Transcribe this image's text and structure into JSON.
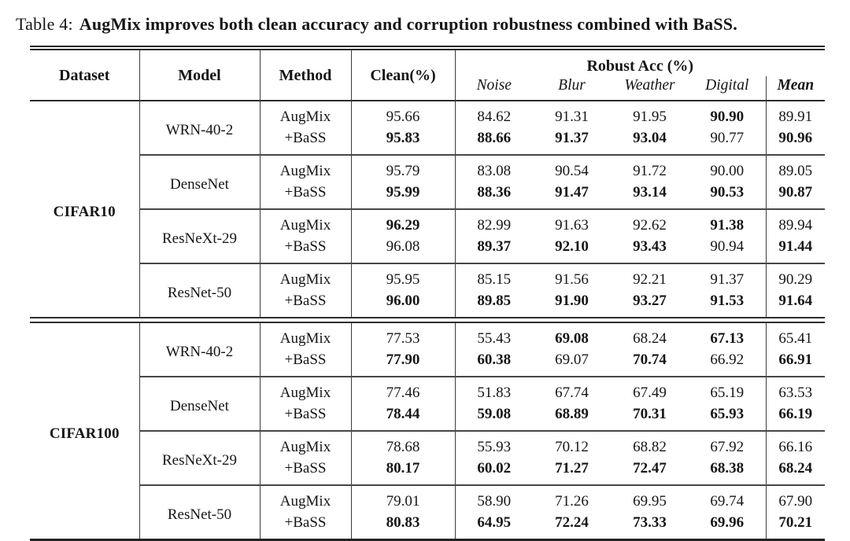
{
  "caption": {
    "label": "Table 4:",
    "title": "AugMix improves both clean accuracy and corruption robustness combined with BaSS."
  },
  "table": {
    "header": {
      "dataset": "Dataset",
      "model": "Model",
      "method": "Method",
      "clean": "Clean(%)",
      "robust_group": "Robust Acc (%)",
      "subcolumns": [
        "Noise",
        "Blur",
        "Weather",
        "Digital",
        "Mean"
      ]
    },
    "value_columns": [
      "clean",
      "noise",
      "blur",
      "weather",
      "digital",
      "mean"
    ],
    "datasets": [
      {
        "name": "CIFAR10",
        "models": [
          {
            "name": "WRN-40-2",
            "rows": [
              {
                "method": "AugMix",
                "values": [
                  "95.66",
                  "84.62",
                  "91.31",
                  "91.95",
                  "90.90",
                  "89.91"
                ],
                "bold": [
                  0,
                  0,
                  0,
                  0,
                  1,
                  0
                ]
              },
              {
                "method": "+BaSS",
                "values": [
                  "95.83",
                  "88.66",
                  "91.37",
                  "93.04",
                  "90.77",
                  "90.96"
                ],
                "bold": [
                  1,
                  1,
                  1,
                  1,
                  0,
                  1
                ]
              }
            ]
          },
          {
            "name": "DenseNet",
            "rows": [
              {
                "method": "AugMix",
                "values": [
                  "95.79",
                  "83.08",
                  "90.54",
                  "91.72",
                  "90.00",
                  "89.05"
                ],
                "bold": [
                  0,
                  0,
                  0,
                  0,
                  0,
                  0
                ]
              },
              {
                "method": "+BaSS",
                "values": [
                  "95.99",
                  "88.36",
                  "91.47",
                  "93.14",
                  "90.53",
                  "90.87"
                ],
                "bold": [
                  1,
                  1,
                  1,
                  1,
                  1,
                  1
                ]
              }
            ]
          },
          {
            "name": "ResNeXt-29",
            "rows": [
              {
                "method": "AugMix",
                "values": [
                  "96.29",
                  "82.99",
                  "91.63",
                  "92.62",
                  "91.38",
                  "89.94"
                ],
                "bold": [
                  1,
                  0,
                  0,
                  0,
                  1,
                  0
                ]
              },
              {
                "method": "+BaSS",
                "values": [
                  "96.08",
                  "89.37",
                  "92.10",
                  "93.43",
                  "90.94",
                  "91.44"
                ],
                "bold": [
                  0,
                  1,
                  1,
                  1,
                  0,
                  1
                ]
              }
            ]
          },
          {
            "name": "ResNet-50",
            "rows": [
              {
                "method": "AugMix",
                "values": [
                  "95.95",
                  "85.15",
                  "91.56",
                  "92.21",
                  "91.37",
                  "90.29"
                ],
                "bold": [
                  0,
                  0,
                  0,
                  0,
                  0,
                  0
                ]
              },
              {
                "method": "+BaSS",
                "values": [
                  "96.00",
                  "89.85",
                  "91.90",
                  "93.27",
                  "91.53",
                  "91.64"
                ],
                "bold": [
                  1,
                  1,
                  1,
                  1,
                  1,
                  1
                ]
              }
            ]
          }
        ]
      },
      {
        "name": "CIFAR100",
        "models": [
          {
            "name": "WRN-40-2",
            "rows": [
              {
                "method": "AugMix",
                "values": [
                  "77.53",
                  "55.43",
                  "69.08",
                  "68.24",
                  "67.13",
                  "65.41"
                ],
                "bold": [
                  0,
                  0,
                  1,
                  0,
                  1,
                  0
                ]
              },
              {
                "method": "+BaSS",
                "values": [
                  "77.90",
                  "60.38",
                  "69.07",
                  "70.74",
                  "66.92",
                  "66.91"
                ],
                "bold": [
                  1,
                  1,
                  0,
                  1,
                  0,
                  1
                ]
              }
            ]
          },
          {
            "name": "DenseNet",
            "rows": [
              {
                "method": "AugMix",
                "values": [
                  "77.46",
                  "51.83",
                  "67.74",
                  "67.49",
                  "65.19",
                  "63.53"
                ],
                "bold": [
                  0,
                  0,
                  0,
                  0,
                  0,
                  0
                ]
              },
              {
                "method": "+BaSS",
                "values": [
                  "78.44",
                  "59.08",
                  "68.89",
                  "70.31",
                  "65.93",
                  "66.19"
                ],
                "bold": [
                  1,
                  1,
                  1,
                  1,
                  1,
                  1
                ]
              }
            ]
          },
          {
            "name": "ResNeXt-29",
            "rows": [
              {
                "method": "AugMix",
                "values": [
                  "78.68",
                  "55.93",
                  "70.12",
                  "68.82",
                  "67.92",
                  "66.16"
                ],
                "bold": [
                  0,
                  0,
                  0,
                  0,
                  0,
                  0
                ]
              },
              {
                "method": "+BaSS",
                "values": [
                  "80.17",
                  "60.02",
                  "71.27",
                  "72.47",
                  "68.38",
                  "68.24"
                ],
                "bold": [
                  1,
                  1,
                  1,
                  1,
                  1,
                  1
                ]
              }
            ]
          },
          {
            "name": "ResNet-50",
            "rows": [
              {
                "method": "AugMix",
                "values": [
                  "79.01",
                  "58.90",
                  "71.26",
                  "69.95",
                  "69.74",
                  "67.90"
                ],
                "bold": [
                  0,
                  0,
                  0,
                  0,
                  0,
                  0
                ]
              },
              {
                "method": "+BaSS",
                "values": [
                  "80.83",
                  "64.95",
                  "72.24",
                  "73.33",
                  "69.96",
                  "70.21"
                ],
                "bold": [
                  1,
                  1,
                  1,
                  1,
                  1,
                  1
                ]
              }
            ]
          }
        ]
      }
    ]
  }
}
